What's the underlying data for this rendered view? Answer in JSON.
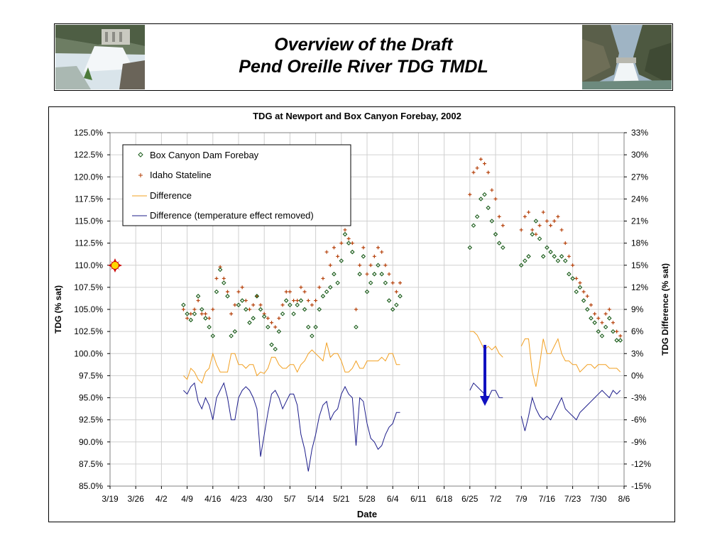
{
  "slide": {
    "title_line1": "Overview of the Draft",
    "title_line2": "Pend Oreille River TDG TMDL"
  },
  "chart_data": {
    "type": "scatter",
    "title": "TDG at Newport and Box Canyon Forebay, 2002",
    "xlabel": "Date",
    "ylabel": "TDG (% sat)",
    "y2label": "TDG Difference (% sat)",
    "x_ticks": [
      "3/19",
      "3/26",
      "4/2",
      "4/9",
      "4/16",
      "4/23",
      "4/30",
      "5/7",
      "5/14",
      "5/21",
      "5/28",
      "6/4",
      "6/11",
      "6/18",
      "6/25",
      "7/2",
      "7/9",
      "7/16",
      "7/23",
      "7/30",
      "8/6"
    ],
    "y_ticks": [
      "125.0%",
      "122.5%",
      "120.0%",
      "117.5%",
      "115.0%",
      "112.5%",
      "110.0%",
      "107.5%",
      "105.0%",
      "102.5%",
      "100.0%",
      "97.5%",
      "95.0%",
      "92.5%",
      "90.0%",
      "87.5%",
      "85.0%"
    ],
    "y2_ticks": [
      "33%",
      "30%",
      "27%",
      "24%",
      "21%",
      "18%",
      "15%",
      "12%",
      "9%",
      "6%",
      "3%",
      "0%",
      "-3%",
      "-6%",
      "-9%",
      "-12%",
      "-15%"
    ],
    "ylim": [
      85,
      125
    ],
    "y2lim": [
      -15,
      33
    ],
    "grid": true,
    "legend_position": "top-left",
    "series": [
      {
        "name": "Box Canyon Dam Forebay",
        "color": "#1a5c1a",
        "marker": "diamond",
        "x": [
          20,
          21,
          22,
          23,
          24,
          25,
          26,
          27,
          28,
          29,
          30,
          31,
          32,
          33,
          34,
          35,
          36,
          37,
          38,
          39,
          40,
          41,
          42,
          43,
          44,
          45,
          46,
          47,
          48,
          49,
          50,
          51,
          52,
          53,
          54,
          55,
          56,
          57,
          58,
          59,
          60,
          61,
          62,
          63,
          64,
          65,
          66,
          67,
          68,
          69,
          70,
          71,
          72,
          73,
          74,
          75,
          76,
          77,
          78,
          79,
          98,
          99,
          100,
          101,
          102,
          103,
          104,
          105,
          106,
          107,
          112,
          113,
          114,
          115,
          116,
          117,
          118,
          119,
          120,
          121,
          122,
          123,
          124,
          125,
          126,
          127,
          128,
          129,
          130,
          131,
          132,
          133,
          134,
          135,
          136,
          137,
          138,
          139
        ],
        "y": [
          105.5,
          104.5,
          103.8,
          104.5,
          106.5,
          105.0,
          104.0,
          103.0,
          102.0,
          107.0,
          109.5,
          108.0,
          106.5,
          102.0,
          102.5,
          105.5,
          106.0,
          105.0,
          103.5,
          104.0,
          106.5,
          105.0,
          104.2,
          103.0,
          101.0,
          100.5,
          102.5,
          104.5,
          106.0,
          105.5,
          104.5,
          105.5,
          106.0,
          105.0,
          103.0,
          102.0,
          103.0,
          105.0,
          106.5,
          107.0,
          107.5,
          109.0,
          108.0,
          110.5,
          113.5,
          112.5,
          111.5,
          103.0,
          109.0,
          111.0,
          107.0,
          108.0,
          109.0,
          110.0,
          109.0,
          108.0,
          106.0,
          105.0,
          105.5,
          106.5,
          112.0,
          114.5,
          115.5,
          117.5,
          118.0,
          116.5,
          115.0,
          113.5,
          112.5,
          112.0,
          110.0,
          110.5,
          111.0,
          113.5,
          115.0,
          113.0,
          111.0,
          112.0,
          111.5,
          111.0,
          110.5,
          111.0,
          110.5,
          109.0,
          108.5,
          107.0,
          107.5,
          106.0,
          105.0,
          104.0,
          103.5,
          102.5,
          102.0,
          103.0,
          104.0,
          102.5,
          101.5,
          101.5
        ]
      },
      {
        "name": "Idaho Stateline",
        "color": "#b5400a",
        "marker": "plus",
        "x": [
          20,
          21,
          22,
          23,
          24,
          25,
          26,
          27,
          28,
          29,
          30,
          31,
          32,
          33,
          34,
          35,
          36,
          37,
          38,
          39,
          40,
          41,
          42,
          43,
          44,
          45,
          46,
          47,
          48,
          49,
          50,
          51,
          52,
          53,
          54,
          55,
          56,
          57,
          58,
          59,
          60,
          61,
          62,
          63,
          64,
          65,
          66,
          67,
          68,
          69,
          70,
          71,
          72,
          73,
          74,
          75,
          76,
          77,
          78,
          79,
          98,
          99,
          100,
          101,
          102,
          103,
          104,
          105,
          106,
          107,
          112,
          113,
          114,
          115,
          116,
          117,
          118,
          119,
          120,
          121,
          122,
          123,
          124,
          125,
          126,
          127,
          128,
          129,
          130,
          131,
          132,
          133,
          134,
          135,
          136,
          137,
          138,
          139
        ],
        "y": [
          105.0,
          104.0,
          104.5,
          105.0,
          106.0,
          104.5,
          104.5,
          104.0,
          105.0,
          108.5,
          109.8,
          108.5,
          107.0,
          104.5,
          105.5,
          107.0,
          107.5,
          106.0,
          105.0,
          105.5,
          106.5,
          105.5,
          104.5,
          104.0,
          103.5,
          103.0,
          104.0,
          105.5,
          107.0,
          107.0,
          106.0,
          106.0,
          107.5,
          107.0,
          106.0,
          105.5,
          106.0,
          107.5,
          108.5,
          111.5,
          110.0,
          112.0,
          111.0,
          112.5,
          114.0,
          113.0,
          112.5,
          105.0,
          110.0,
          112.0,
          109.0,
          110.0,
          111.0,
          112.0,
          111.5,
          110.0,
          109.0,
          108.0,
          107.0,
          108.0,
          118.0,
          120.5,
          121.0,
          122.0,
          121.5,
          120.5,
          118.5,
          117.5,
          115.5,
          114.5,
          114.0,
          115.5,
          116.0,
          114.0,
          113.5,
          114.5,
          116.0,
          115.0,
          114.5,
          115.0,
          115.5,
          114.0,
          112.5,
          111.0,
          110.0,
          108.5,
          108.0,
          107.0,
          106.5,
          105.5,
          104.5,
          104.0,
          103.5,
          104.5,
          105.0,
          103.5,
          102.5,
          102.0
        ]
      },
      {
        "name": "Difference",
        "color": "#f2a022",
        "marker": "line",
        "x": [
          20,
          21,
          22,
          23,
          24,
          25,
          26,
          27,
          28,
          29,
          30,
          31,
          32,
          33,
          34,
          35,
          36,
          37,
          38,
          39,
          40,
          41,
          42,
          43,
          44,
          45,
          46,
          47,
          48,
          49,
          50,
          51,
          52,
          53,
          54,
          55,
          56,
          57,
          58,
          59,
          60,
          61,
          62,
          63,
          64,
          65,
          66,
          67,
          68,
          69,
          70,
          71,
          72,
          73,
          74,
          75,
          76,
          77,
          78,
          79,
          98,
          99,
          100,
          101,
          102,
          103,
          104,
          105,
          106,
          107,
          112,
          113,
          114,
          115,
          116,
          117,
          118,
          119,
          120,
          121,
          122,
          123,
          124,
          125,
          126,
          127,
          128,
          129,
          130,
          131,
          132,
          133,
          134,
          135,
          136,
          137,
          138,
          139
        ],
        "y": [
          0.0,
          -0.5,
          1.0,
          0.5,
          -0.5,
          -1.0,
          0.5,
          1.0,
          3.0,
          1.5,
          0.5,
          0.5,
          0.5,
          3.0,
          3.0,
          1.5,
          1.5,
          1.0,
          1.5,
          1.5,
          0.0,
          0.5,
          0.3,
          1.0,
          2.5,
          2.5,
          1.5,
          1.0,
          1.0,
          1.5,
          1.5,
          0.5,
          1.5,
          2.0,
          3.0,
          3.5,
          3.0,
          2.5,
          2.0,
          4.5,
          2.5,
          3.0,
          3.0,
          2.0,
          0.5,
          0.5,
          1.0,
          2.0,
          1.0,
          1.0,
          2.0,
          2.0,
          2.0,
          2.0,
          2.5,
          2.0,
          3.0,
          3.0,
          1.5,
          1.5,
          6.0,
          6.0,
          5.5,
          4.5,
          3.5,
          4.0,
          3.5,
          4.0,
          3.0,
          2.5,
          4.0,
          5.0,
          5.0,
          0.5,
          -1.5,
          1.5,
          5.0,
          3.0,
          3.0,
          4.0,
          5.0,
          3.0,
          2.0,
          2.0,
          1.5,
          1.5,
          0.5,
          1.0,
          1.5,
          1.5,
          1.0,
          1.5,
          1.5,
          1.5,
          1.0,
          1.0,
          1.0,
          0.5
        ]
      },
      {
        "name": "Difference (temperature effect removed)",
        "color": "#1c1c8a",
        "marker": "line",
        "x": [
          20,
          21,
          22,
          23,
          24,
          25,
          26,
          27,
          28,
          29,
          30,
          31,
          32,
          33,
          34,
          35,
          36,
          37,
          38,
          39,
          40,
          41,
          42,
          43,
          44,
          45,
          46,
          47,
          48,
          49,
          50,
          51,
          52,
          53,
          54,
          55,
          56,
          57,
          58,
          59,
          60,
          61,
          62,
          63,
          64,
          65,
          66,
          67,
          68,
          69,
          70,
          71,
          72,
          73,
          74,
          75,
          76,
          77,
          78,
          79,
          98,
          99,
          100,
          101,
          102,
          103,
          104,
          105,
          106,
          107,
          112,
          113,
          114,
          115,
          116,
          117,
          118,
          119,
          120,
          121,
          122,
          123,
          124,
          125,
          126,
          127,
          128,
          129,
          130,
          131,
          132,
          133,
          134,
          135,
          136,
          137,
          138,
          139
        ],
        "y": [
          -2.0,
          -2.5,
          -1.5,
          -1.0,
          -3.5,
          -4.5,
          -3.0,
          -4.0,
          -6.0,
          -3.0,
          -2.0,
          -1.0,
          -3.0,
          -6.0,
          -6.0,
          -3.0,
          -2.0,
          -1.5,
          -2.0,
          -3.0,
          -4.5,
          -11.0,
          -8.0,
          -5.0,
          -2.5,
          -2.0,
          -3.0,
          -4.5,
          -3.5,
          -2.5,
          -2.5,
          -4.0,
          -8.0,
          -10.0,
          -13.0,
          -10.0,
          -8.0,
          -5.5,
          -4.0,
          -3.5,
          -6.0,
          -5.0,
          -4.5,
          -2.5,
          -1.5,
          -2.5,
          -3.0,
          -9.5,
          -3.0,
          -3.5,
          -6.5,
          -8.5,
          -9.0,
          -10.0,
          -9.5,
          -8.0,
          -7.0,
          -6.5,
          -5.0,
          -5.0,
          -2.0,
          -1.0,
          -1.5,
          -2.0,
          -2.5,
          -3.0,
          -2.0,
          -2.0,
          -3.0,
          -3.0,
          -5.5,
          -7.5,
          -5.5,
          -3.0,
          -4.5,
          -5.5,
          -6.0,
          -5.5,
          -6.0,
          -5.0,
          -4.0,
          -3.0,
          -4.5,
          -5.0,
          -5.5,
          -6.0,
          -5.0,
          -4.5,
          -4.0,
          -3.5,
          -3.0,
          -2.5,
          -2.0,
          -2.5,
          -3.0,
          -2.0,
          -2.5,
          -2.0
        ]
      }
    ]
  }
}
